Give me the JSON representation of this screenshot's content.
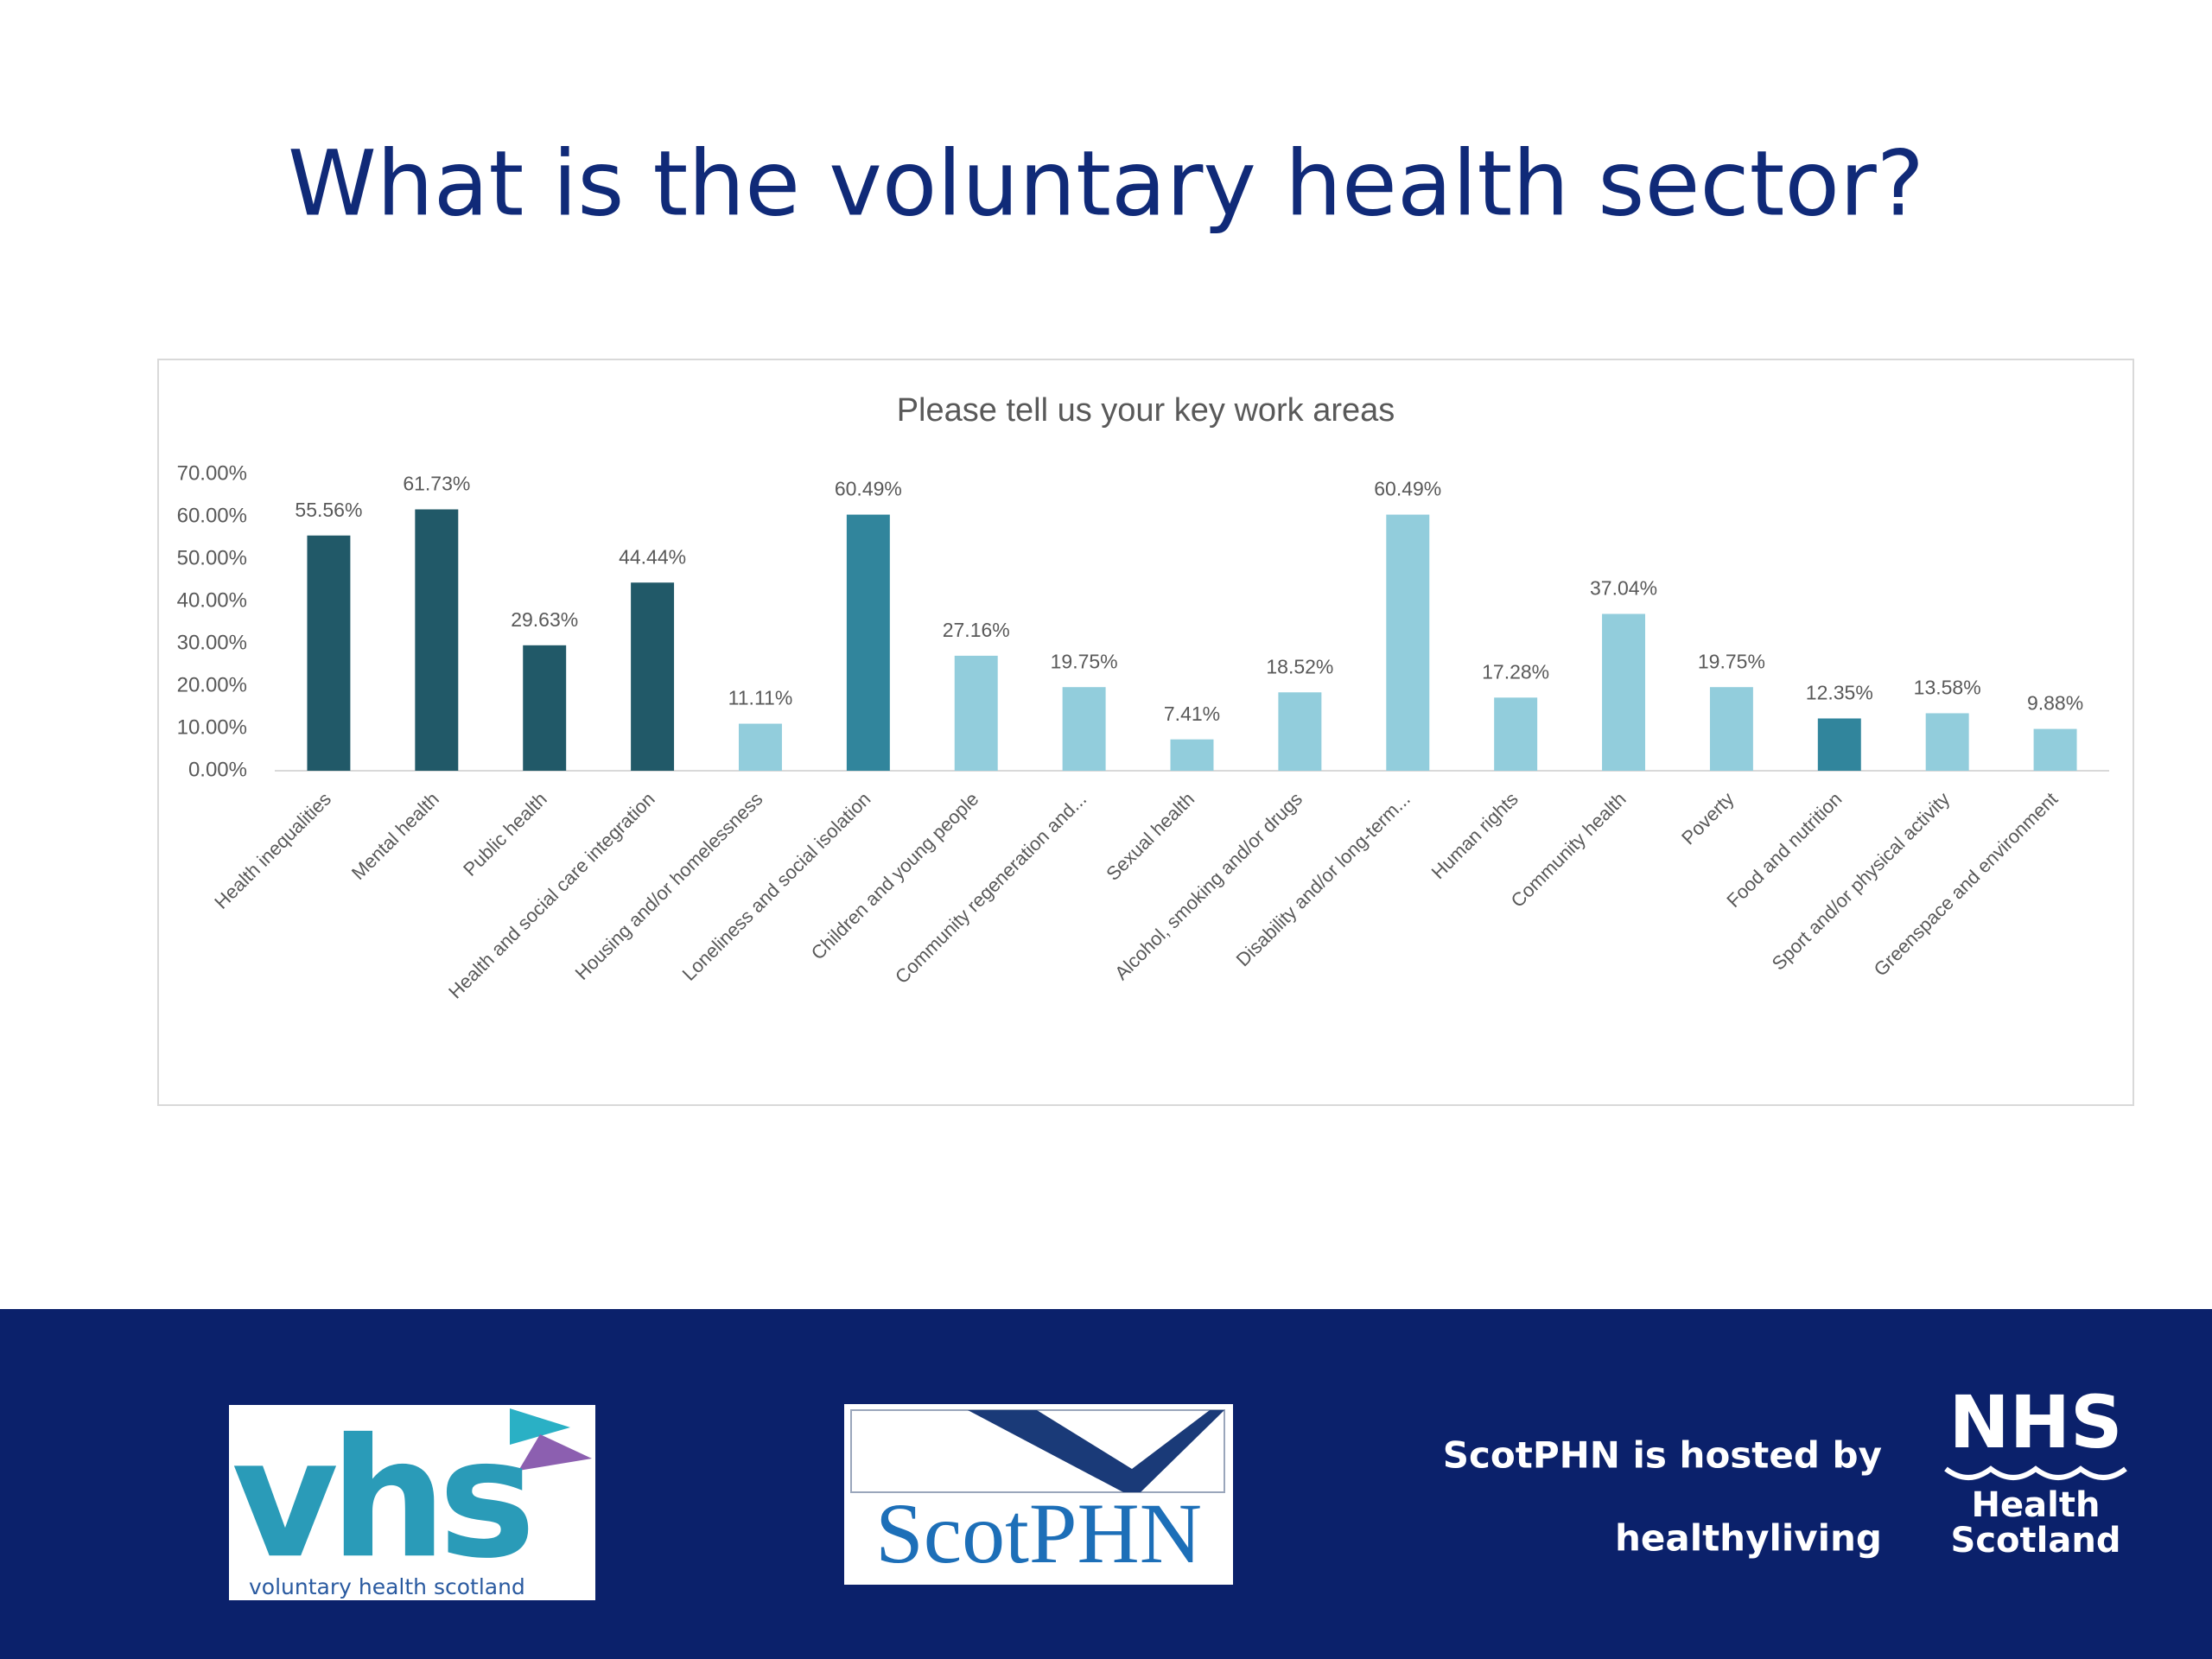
{
  "slide_title": "What is the voluntary health sector?",
  "chart_data": {
    "type": "bar",
    "title": "Please tell us your key work areas",
    "categories": [
      "Health inequalities",
      "Mental health",
      "Public health",
      "Health and social care integration",
      "Housing and/or homelessness",
      "Loneliness and social isolation",
      "Children and young people",
      "Community regeneration and...",
      "Sexual health",
      "Alcohol, smoking and/or drugs",
      "Disability and/or long-term...",
      "Human rights",
      "Community health",
      "Poverty",
      "Food and nutrition",
      "Sport and/or physical activity",
      "Greenspace and environment"
    ],
    "values": [
      55.56,
      61.73,
      29.63,
      44.44,
      11.11,
      60.49,
      27.16,
      19.75,
      7.41,
      18.52,
      60.49,
      17.28,
      37.04,
      19.75,
      12.35,
      13.58,
      9.88
    ],
    "value_labels": [
      "55.56%",
      "61.73%",
      "29.63%",
      "44.44%",
      "11.11%",
      "60.49%",
      "27.16%",
      "19.75%",
      "7.41%",
      "18.52%",
      "60.49%",
      "17.28%",
      "37.04%",
      "19.75%",
      "12.35%",
      "13.58%",
      "9.88%"
    ],
    "colors": [
      "#215968",
      "#215968",
      "#215968",
      "#215968",
      "#92cddc",
      "#31859c",
      "#92cddc",
      "#92cddc",
      "#92cddc",
      "#92cddc",
      "#92cddc",
      "#92cddc",
      "#92cddc",
      "#92cddc",
      "#31859c",
      "#92cddc",
      "#92cddc"
    ],
    "ylim": [
      0,
      70
    ],
    "yticks": [
      {
        "value": 0,
        "label": "0.00%"
      },
      {
        "value": 10,
        "label": "10.00%"
      },
      {
        "value": 20,
        "label": "20.00%"
      },
      {
        "value": 30,
        "label": "30.00%"
      },
      {
        "value": 40,
        "label": "40.00%"
      },
      {
        "value": 50,
        "label": "50.00%"
      },
      {
        "value": 60,
        "label": "60.00%"
      },
      {
        "value": 70,
        "label": "70.00%"
      }
    ],
    "grid": false
  },
  "footer": {
    "vhs_logo": "vhs",
    "vhs_name": "voluntary health scotland",
    "scotphn_logo": "ScotPHN",
    "hosted_by": "ScotPHN is hosted by",
    "healthyliving": "healthyliving",
    "nhs": "NHS",
    "nhs_health": "Health",
    "nhs_scotland": "Scotland"
  }
}
